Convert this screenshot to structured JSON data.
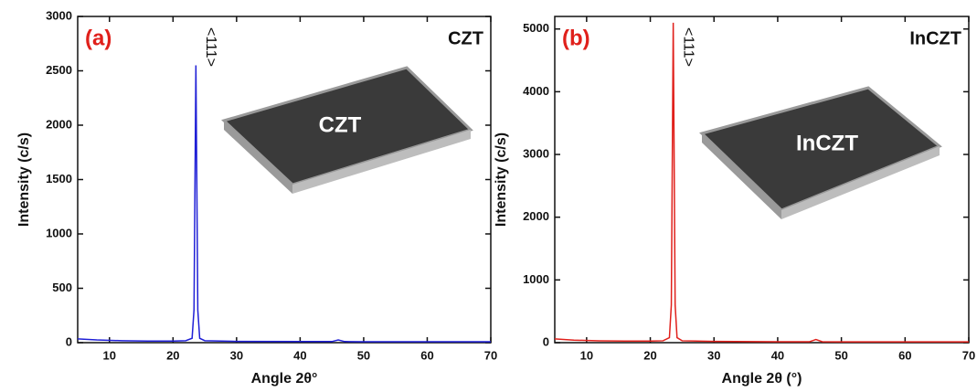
{
  "chart_data": [
    {
      "type": "line",
      "panel_label": "(a)",
      "title": "CZT",
      "annotation": "<111>",
      "inset_label": "CZT",
      "xlabel": "Angle 2θ°",
      "ylabel": "Intensity (c/s)",
      "x": [
        5,
        8,
        12,
        16,
        20,
        22,
        23,
        23.3,
        23.5,
        23.6,
        23.7,
        23.9,
        24.2,
        25,
        30,
        40,
        45,
        46,
        47,
        50,
        60,
        70
      ],
      "values": [
        35,
        25,
        18,
        15,
        15,
        18,
        40,
        300,
        1800,
        2550,
        1800,
        300,
        40,
        18,
        12,
        10,
        10,
        25,
        10,
        8,
        8,
        8
      ],
      "color": "#1f1fd6",
      "panel_color": "#e0201b",
      "xlim": [
        5,
        70
      ],
      "xticks": [
        10,
        20,
        30,
        40,
        50,
        60,
        70
      ],
      "ylim": [
        0,
        3000
      ],
      "yticks": [
        0,
        500,
        1000,
        1500,
        2000,
        2500,
        3000
      ]
    },
    {
      "type": "line",
      "panel_label": "(b)",
      "title": "InCZT",
      "annotation": "<111>",
      "inset_label": "InCZT",
      "xlabel": "Angle 2θ (°)",
      "ylabel": "Intensity (c/s)",
      "x": [
        5,
        8,
        12,
        16,
        20,
        22,
        23,
        23.3,
        23.5,
        23.6,
        23.7,
        23.9,
        24.2,
        25,
        30,
        40,
        45,
        46,
        47,
        50,
        60,
        70
      ],
      "values": [
        60,
        40,
        30,
        25,
        25,
        30,
        80,
        600,
        3600,
        5100,
        3600,
        600,
        80,
        30,
        20,
        15,
        15,
        50,
        15,
        12,
        12,
        12
      ],
      "color": "#e0201b",
      "panel_color": "#e0201b",
      "xlim": [
        5,
        70
      ],
      "xticks": [
        10,
        20,
        30,
        40,
        50,
        60,
        70
      ],
      "ylim": [
        0,
        5200
      ],
      "yticks": [
        0,
        1000,
        2000,
        3000,
        4000,
        5000
      ]
    }
  ]
}
